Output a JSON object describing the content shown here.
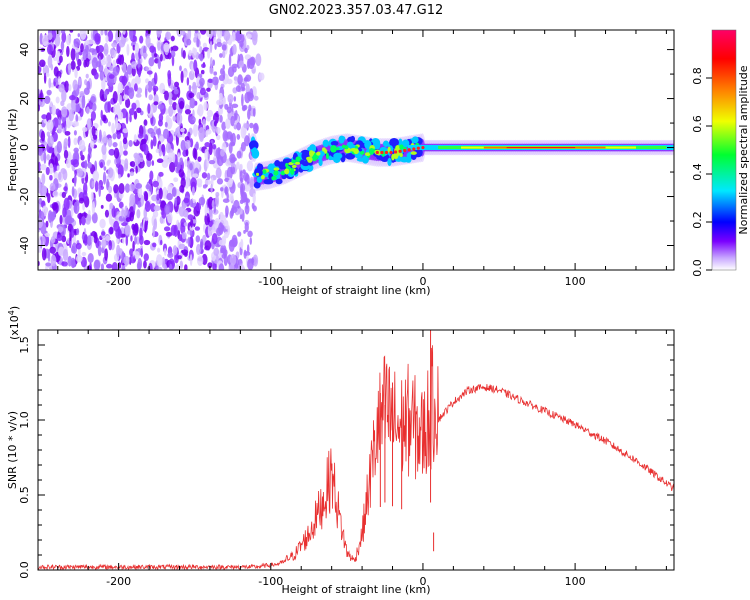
{
  "title": "GN02.2023.357.03.47.G12",
  "chart_data": [
    {
      "type": "heatmap",
      "title": "GN02.2023.357.03.47.G12",
      "xlabel": "Height of straight line (km)",
      "ylabel": "Frequency (Hz)",
      "xlim": [
        -253,
        165
      ],
      "ylim": [
        -50,
        48
      ],
      "x_ticks": [
        -200,
        -100,
        0,
        100
      ],
      "y_ticks": [
        -40,
        -20,
        0,
        20,
        40
      ],
      "x_tick_labels": [
        "-200",
        "-100",
        "0",
        "100"
      ],
      "y_tick_labels": [
        "-40",
        "-20",
        "0",
        "20",
        "40"
      ],
      "noise_region_x": [
        -253,
        -105
      ],
      "signal_track": [
        {
          "x": -110,
          "y": -12
        },
        {
          "x": -100,
          "y": -11
        },
        {
          "x": -90,
          "y": -9
        },
        {
          "x": -80,
          "y": -6
        },
        {
          "x": -70,
          "y": -3
        },
        {
          "x": -60,
          "y": -1
        },
        {
          "x": -50,
          "y": 0
        },
        {
          "x": -40,
          "y": -1
        },
        {
          "x": -30,
          "y": -2
        },
        {
          "x": -20,
          "y": -2
        },
        {
          "x": -10,
          "y": -1
        },
        {
          "x": 0,
          "y": 0
        },
        {
          "x": 20,
          "y": 0
        },
        {
          "x": 60,
          "y": 0
        },
        {
          "x": 100,
          "y": 0
        },
        {
          "x": 140,
          "y": 0
        },
        {
          "x": 165,
          "y": 0
        }
      ],
      "colorbar": {
        "label": "Normalized spectral amplitude",
        "range": [
          0,
          1
        ],
        "ticks": [
          0.0,
          0.2,
          0.4,
          0.6,
          0.8
        ],
        "tick_labels": [
          "0.0",
          "0.2",
          "0.4",
          "0.6",
          "0.8"
        ],
        "colors": [
          "#ffffff",
          "#c8a8ff",
          "#7a00ff",
          "#0000ff",
          "#00e8ff",
          "#00ff30",
          "#f0ff00",
          "#ff8000",
          "#ff0000",
          "#ff0066"
        ]
      },
      "grid": false
    },
    {
      "type": "line",
      "xlabel": "Height of straight line (km)",
      "ylabel": "SNR (10 * v/v)",
      "y_scale_note": "(x10",
      "y_scale_exp": "4",
      "y_scale_close": ")",
      "xlim": [
        -253,
        165
      ],
      "ylim": [
        0,
        1.6
      ],
      "x_ticks": [
        -200,
        -100,
        0,
        100
      ],
      "y_ticks": [
        0.0,
        0.5,
        1.0,
        1.5
      ],
      "x_tick_labels": [
        "-200",
        "-100",
        "0",
        "100"
      ],
      "y_tick_labels": [
        "0.0",
        "0.5",
        "1.0",
        "1.5"
      ],
      "series_color": "#e83030",
      "envelope": [
        {
          "x": -253,
          "y": 0.02
        },
        {
          "x": -150,
          "y": 0.02
        },
        {
          "x": -110,
          "y": 0.02
        },
        {
          "x": -95,
          "y": 0.04
        },
        {
          "x": -85,
          "y": 0.08
        },
        {
          "x": -75,
          "y": 0.2
        },
        {
          "x": -65,
          "y": 0.4
        },
        {
          "x": -60,
          "y": 0.55
        },
        {
          "x": -55,
          "y": 0.3
        },
        {
          "x": -50,
          "y": 0.1
        },
        {
          "x": -45,
          "y": 0.05
        },
        {
          "x": -40,
          "y": 0.2
        },
        {
          "x": -35,
          "y": 0.5
        },
        {
          "x": -30,
          "y": 0.8
        },
        {
          "x": -25,
          "y": 0.9
        },
        {
          "x": -20,
          "y": 0.85
        },
        {
          "x": -15,
          "y": 0.8
        },
        {
          "x": -10,
          "y": 0.85
        },
        {
          "x": -5,
          "y": 0.8
        },
        {
          "x": 0,
          "y": 0.75
        },
        {
          "x": 5,
          "y": 0.9
        },
        {
          "x": 10,
          "y": 1.0
        },
        {
          "x": 20,
          "y": 1.12
        },
        {
          "x": 30,
          "y": 1.2
        },
        {
          "x": 40,
          "y": 1.22
        },
        {
          "x": 50,
          "y": 1.2
        },
        {
          "x": 60,
          "y": 1.15
        },
        {
          "x": 80,
          "y": 1.06
        },
        {
          "x": 100,
          "y": 0.97
        },
        {
          "x": 120,
          "y": 0.86
        },
        {
          "x": 140,
          "y": 0.73
        },
        {
          "x": 165,
          "y": 0.54
        }
      ],
      "spikes": [
        {
          "x": 5,
          "y": 1.6
        },
        {
          "x": 7,
          "y": 0.25
        },
        {
          "x": -28,
          "y": 1.18
        },
        {
          "x": -25,
          "y": 1.1
        },
        {
          "x": -20,
          "y": 1.25
        },
        {
          "x": -14,
          "y": 1.0
        }
      ],
      "grid": false
    }
  ]
}
